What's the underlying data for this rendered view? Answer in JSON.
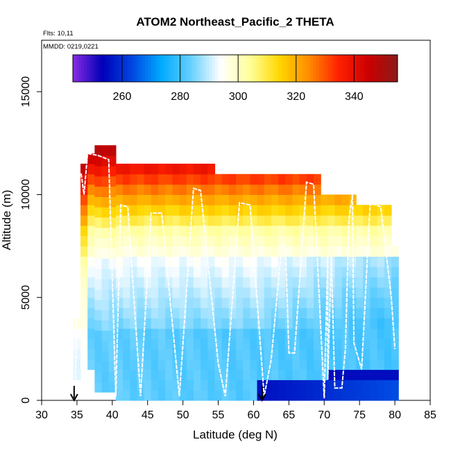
{
  "chart_data": {
    "type": "heatmap",
    "title": "ATOM2 Northeast_Pacific_2 THETA",
    "flights_label": "Flts: 10,11",
    "date_label": "MMDD: 0219,0221",
    "xlabel": "Latitude (deg N)",
    "ylabel": "Altitude (m)",
    "xlim": [
      30,
      85
    ],
    "ylim": [
      0,
      17500
    ],
    "x_ticks": [
      "30",
      "35",
      "40",
      "45",
      "50",
      "55",
      "60",
      "65",
      "70",
      "75",
      "80",
      "85"
    ],
    "y_ticks": [
      "0",
      "5000",
      "10000",
      "15000"
    ],
    "colorbar": {
      "range": [
        243,
        355
      ],
      "ticks": [
        "260",
        "280",
        "300",
        "320",
        "340"
      ],
      "colors": [
        "#8a2be2",
        "#0000b8",
        "#0046e0",
        "#00aaff",
        "#66d0ff",
        "#ffffff",
        "#ffff99",
        "#ffd700",
        "#ff8c00",
        "#ff2000",
        "#cc0000",
        "#8b1a1a"
      ]
    },
    "markers": [
      34.6,
      61.2
    ],
    "flight_track": [
      [
        34.8,
        1000
      ],
      [
        35.2,
        11000
      ],
      [
        35.6,
        11000
      ],
      [
        36,
        10000
      ],
      [
        36.5,
        12000
      ],
      [
        38,
        11900
      ],
      [
        39.5,
        11700
      ],
      [
        40.5,
        200
      ],
      [
        41.2,
        9500
      ],
      [
        42.2,
        9400
      ],
      [
        44,
        200
      ],
      [
        45.5,
        9100
      ],
      [
        47,
        9100
      ],
      [
        49.5,
        200
      ],
      [
        51.5,
        10300
      ],
      [
        52.5,
        10200
      ],
      [
        55,
        1800
      ],
      [
        56,
        200
      ],
      [
        58,
        9600
      ],
      [
        59.5,
        9500
      ],
      [
        61.5,
        200
      ],
      [
        62.5,
        2000
      ],
      [
        64,
        7600
      ],
      [
        64.5,
        7500
      ],
      [
        64.8,
        4500
      ],
      [
        65,
        2300
      ],
      [
        65.8,
        2300
      ],
      [
        67.5,
        10600
      ],
      [
        68.5,
        10500
      ],
      [
        70,
        100
      ],
      [
        70.5,
        7000
      ],
      [
        70.5,
        1000
      ],
      [
        71,
        7000
      ],
      [
        71.5,
        600
      ],
      [
        72.5,
        600
      ],
      [
        73,
        2500
      ],
      [
        73.5,
        8800
      ],
      [
        74,
        10000
      ],
      [
        74.2,
        2800
      ],
      [
        75.3,
        1500
      ],
      [
        76.5,
        9600
      ],
      [
        78,
        9400
      ],
      [
        79.5,
        5000
      ],
      [
        80,
        2500
      ]
    ]
  }
}
